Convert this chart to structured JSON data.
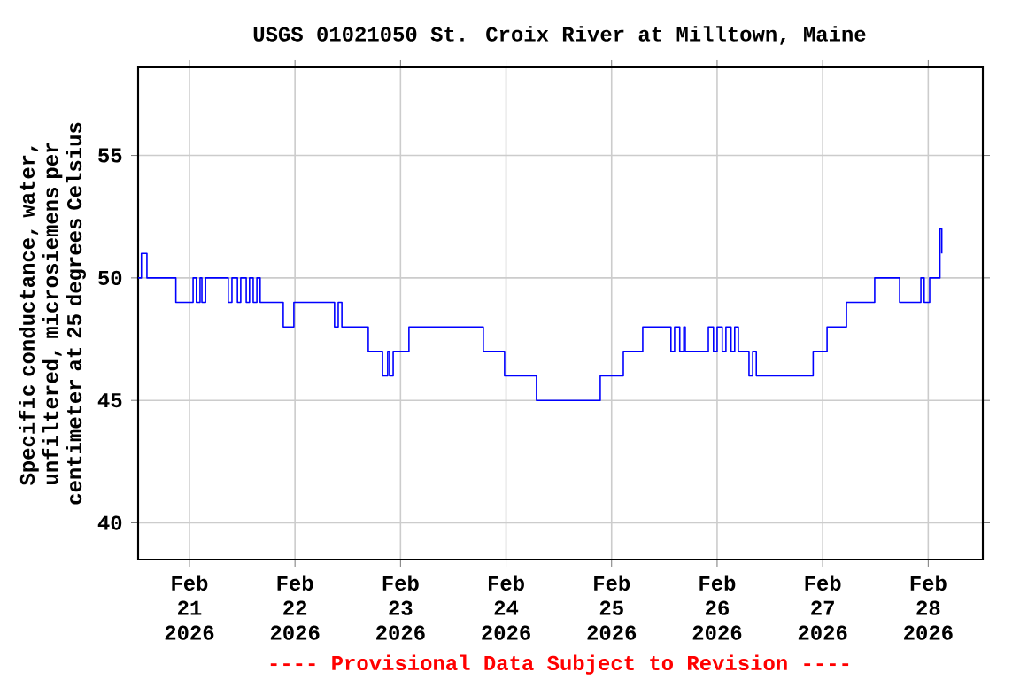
{
  "chart_data": {
    "type": "step",
    "title": "USGS 01021050 St. Croix River at Milltown, Maine",
    "ylabel": "Specific conductance, water, unfiltered, microsiemens per centimeter at 25 degrees Celsius",
    "annotations": [
      "---- Provisional Data Subject to Revision ----"
    ],
    "x": [
      "2026-02-20T12:20",
      "2026-02-20T13:05",
      "2026-02-20T14:20",
      "2026-02-20T20:55",
      "2026-02-21T00:50",
      "2026-02-21T01:35",
      "2026-02-21T02:25",
      "2026-02-21T02:50",
      "2026-02-21T03:40",
      "2026-02-21T08:50",
      "2026-02-21T09:40",
      "2026-02-21T10:55",
      "2026-02-21T11:40",
      "2026-02-21T12:55",
      "2026-02-21T13:40",
      "2026-02-21T14:30",
      "2026-02-21T15:20",
      "2026-02-21T16:05",
      "2026-02-21T21:20",
      "2026-02-21T23:45",
      "2026-02-22T09:00",
      "2026-02-22T09:50",
      "2026-02-22T10:40",
      "2026-02-22T16:40",
      "2026-02-22T19:55",
      "2026-02-22T21:05",
      "2026-02-22T21:30",
      "2026-02-22T22:20",
      "2026-02-23T01:55",
      "2026-02-23T18:50",
      "2026-02-23T23:40",
      "2026-02-24T06:55",
      "2026-02-24T21:25",
      "2026-02-25T02:40",
      "2026-02-25T07:05",
      "2026-02-25T13:30",
      "2026-02-25T14:20",
      "2026-02-25T15:30",
      "2026-02-25T16:25",
      "2026-02-25T16:45",
      "2026-02-25T22:00",
      "2026-02-25T23:10",
      "2026-02-26T00:00",
      "2026-02-26T01:10",
      "2026-02-26T02:00",
      "2026-02-26T03:10",
      "2026-02-26T04:00",
      "2026-02-26T04:50",
      "2026-02-26T07:15",
      "2026-02-26T08:05",
      "2026-02-26T08:55",
      "2026-02-26T21:50",
      "2026-02-27T01:00",
      "2026-02-27T05:25",
      "2026-02-27T11:50",
      "2026-02-27T17:30",
      "2026-02-27T22:20",
      "2026-02-27T23:05",
      "2026-02-28T00:20",
      "2026-02-28T02:40",
      "2026-02-28T03:05"
    ],
    "series": [
      {
        "color": "#0000ff",
        "values": [
          50,
          51,
          50,
          49,
          50,
          49,
          50,
          49,
          50,
          49,
          50,
          49,
          50,
          49,
          50,
          49,
          50,
          49,
          48,
          49,
          48,
          49,
          48,
          47,
          46,
          47,
          46,
          47,
          48,
          47,
          46,
          45,
          46,
          47,
          48,
          47,
          48,
          47,
          48,
          47,
          48,
          47,
          48,
          47,
          48,
          47,
          48,
          47,
          46,
          47,
          46,
          47,
          48,
          49,
          50,
          49,
          50,
          49,
          50,
          52,
          51
        ]
      }
    ],
    "xlim": [
      "2026-02-20T12:20",
      "2026-02-28T12:25"
    ],
    "xticks": [
      {
        "value": "2026-02-21",
        "label": "Feb 21 2026"
      },
      {
        "value": "2026-02-22",
        "label": "Feb 22 2026"
      },
      {
        "value": "2026-02-23",
        "label": "Feb 23 2026"
      },
      {
        "value": "2026-02-24",
        "label": "Feb 24 2026"
      },
      {
        "value": "2026-02-25",
        "label": "Feb 25 2026"
      },
      {
        "value": "2026-02-26",
        "label": "Feb 26 2026"
      },
      {
        "value": "2026-02-27",
        "label": "Feb 27 2026"
      },
      {
        "value": "2026-02-28",
        "label": "Feb 28 2026"
      }
    ],
    "ylim": [
      38.5,
      58.6
    ],
    "yticks": [
      40,
      45,
      50,
      55
    ],
    "grid": true,
    "marker": "none",
    "line_style": "solid"
  }
}
